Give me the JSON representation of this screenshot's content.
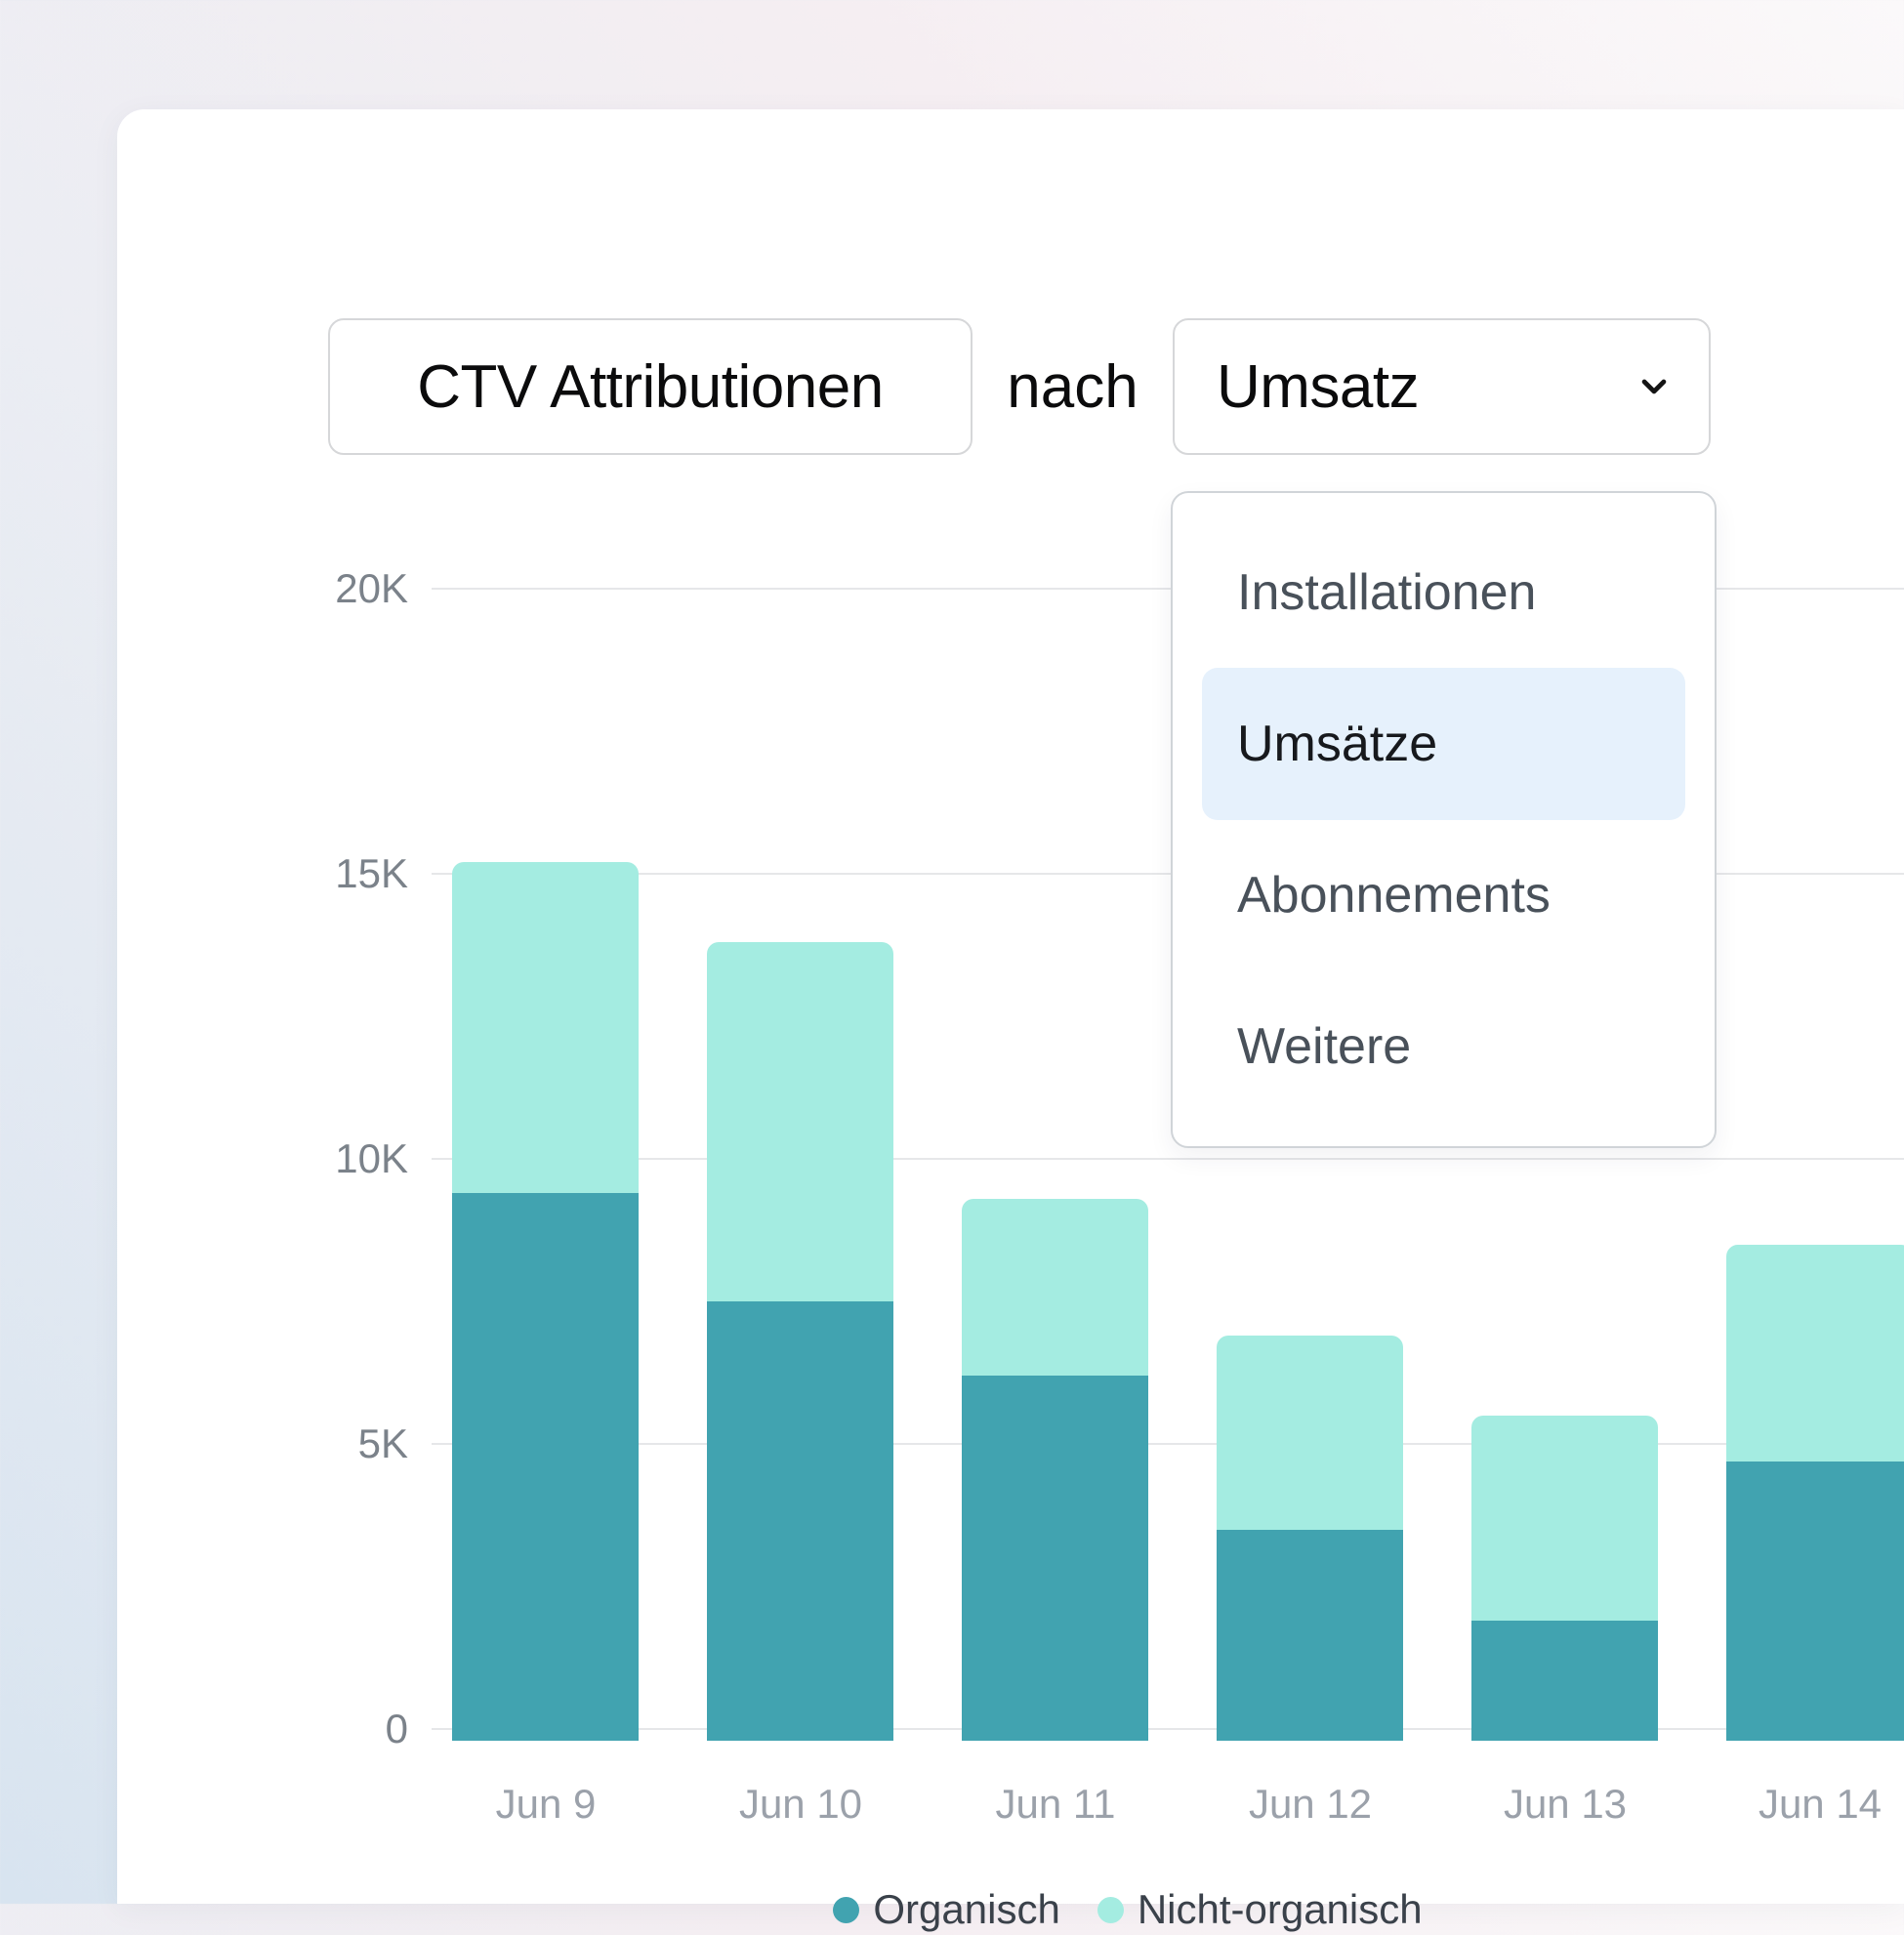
{
  "header": {
    "title": "CTV Attributionen",
    "connector": "nach",
    "metric_selected": "Umsatz"
  },
  "dropdown": {
    "items": [
      {
        "label": "Installationen",
        "selected": false
      },
      {
        "label": "Umsätze",
        "selected": true
      },
      {
        "label": "Abonnements",
        "selected": false
      },
      {
        "label": "Weitere",
        "selected": false
      }
    ],
    "highlight_color": "#E6F1FC"
  },
  "chart_data": {
    "type": "bar",
    "stacked": true,
    "title": "CTV Attributionen nach Umsatz",
    "categories": [
      "Jun 9",
      "Jun 10",
      "Jun 11",
      "Jun 12",
      "Jun 13",
      "Jun 14"
    ],
    "series": [
      {
        "name": "Organisch",
        "color": "#41A3B0",
        "values": [
          9400,
          7500,
          6200,
          3500,
          1900,
          4700
        ]
      },
      {
        "name": "Nicht-organisch",
        "color": "#A4ECE1",
        "values": [
          5800,
          6300,
          3100,
          3400,
          3600,
          3800
        ]
      }
    ],
    "totals": [
      15200,
      13800,
      9300,
      6900,
      5500,
      8500
    ],
    "y_axis": {
      "min": 0,
      "max": 20000,
      "tick_values": [
        0,
        5000,
        10000,
        15000,
        20000
      ],
      "tick_labels": [
        "0",
        "5K",
        "10K",
        "15K",
        "20K"
      ]
    },
    "grid": true,
    "legend_position": "bottom"
  },
  "colors": {
    "card_background": "#FFFFFF",
    "page_gradient_top": "#F5EEF2",
    "page_gradient_bottom": "#D8E4F0",
    "chip_border": "#D6D7D9",
    "panel_border": "#D0D4D8",
    "gridline": "#E6E7E9",
    "axis_label": "#7B828A",
    "date_label": "#9BA1AA",
    "legend_text": "#3A414A",
    "item_text": "#49515A",
    "item_text_selected": "#17191D",
    "header_text": "#0B0B0C"
  }
}
